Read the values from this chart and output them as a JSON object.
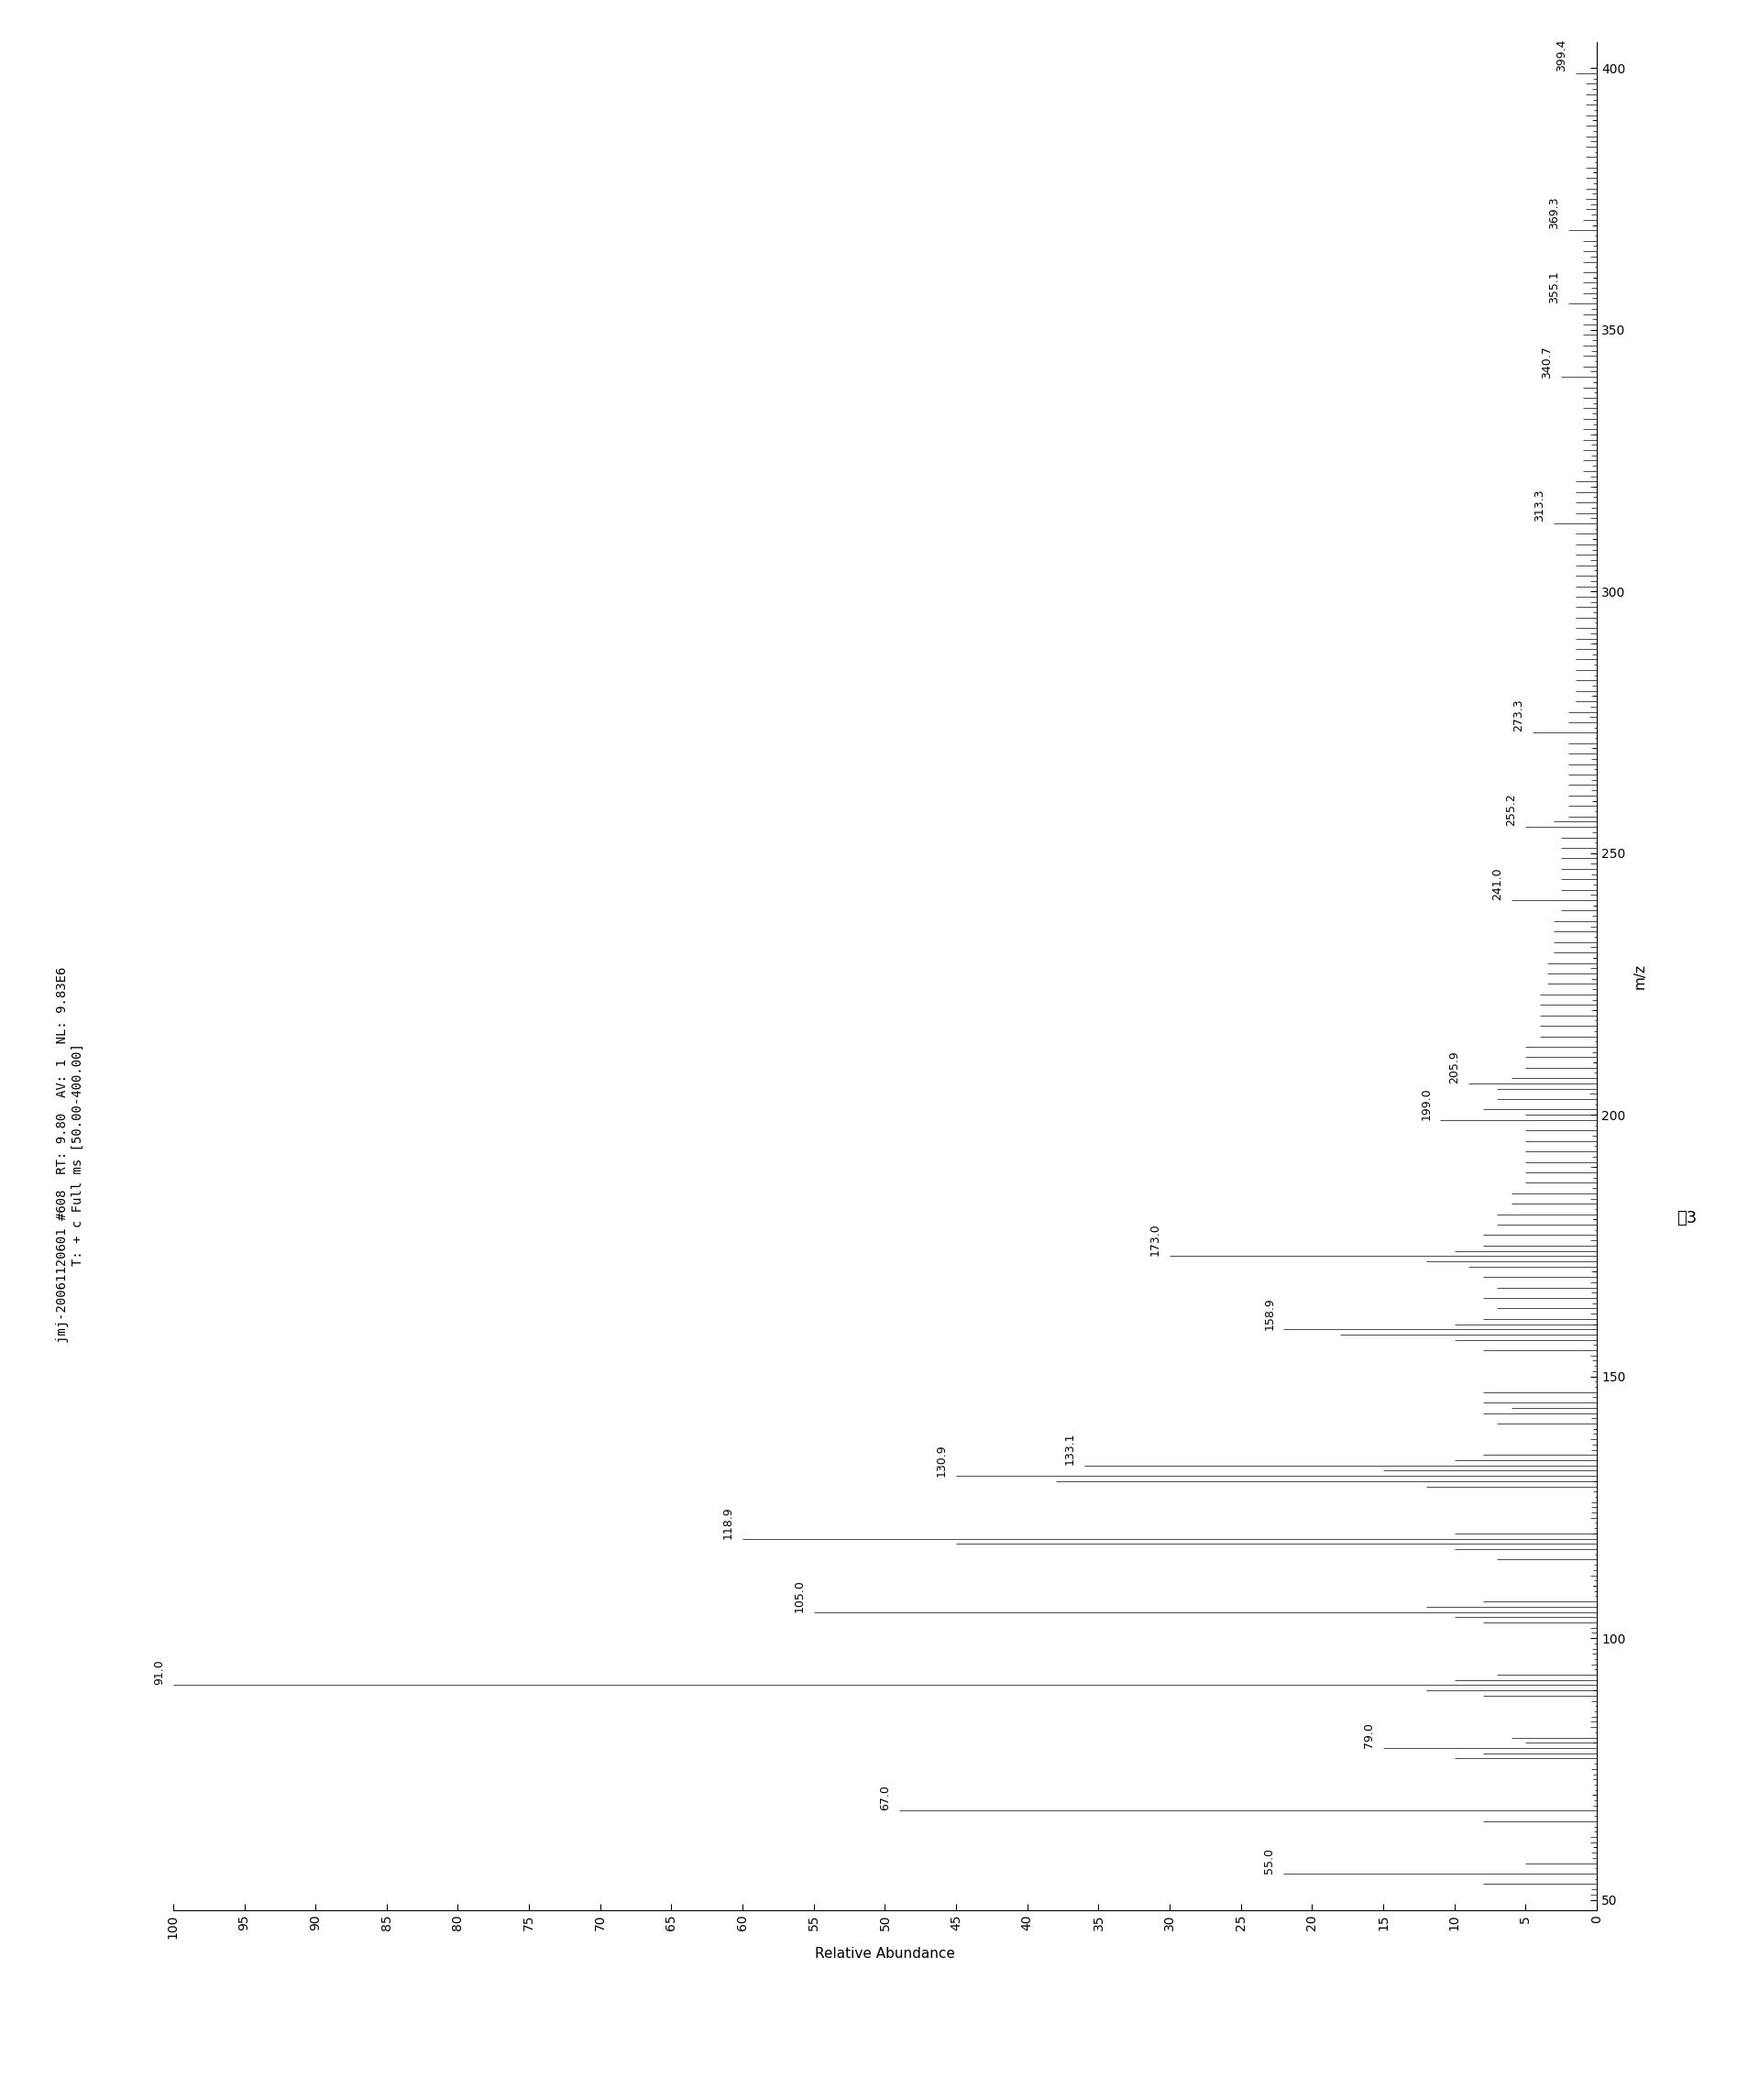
{
  "title_line1": "jmj-20061120601 #608  RT: 9.80  AV: 1  NL: 9.83E6",
  "title_line2": "T: + c Full ms [50.00-400.00]",
  "xlabel": "Relative Abundance",
  "ylabel": "m/z",
  "caption": "图3",
  "background_color": "#ffffff",
  "line_color": "#000000",
  "fontsize_title": 10,
  "fontsize_label": 11,
  "fontsize_tick": 10,
  "fontsize_peak": 9,
  "labeled_peaks": [
    {
      "mz": 67.0,
      "rel": 49.0,
      "label": "67.0"
    },
    {
      "mz": 79.0,
      "rel": 15.0,
      "label": "79.0"
    },
    {
      "mz": 91.0,
      "rel": 100.0,
      "label": "91.0"
    },
    {
      "mz": 105.0,
      "rel": 55.0,
      "label": "105.0"
    },
    {
      "mz": 118.9,
      "rel": 60.0,
      "label": "118.9"
    },
    {
      "mz": 130.9,
      "rel": 45.0,
      "label": "130.9"
    },
    {
      "mz": 133.1,
      "rel": 36.0,
      "label": "133.1"
    },
    {
      "mz": 158.9,
      "rel": 22.0,
      "label": "158.9"
    },
    {
      "mz": 173.0,
      "rel": 30.0,
      "label": "173.0"
    },
    {
      "mz": 199.0,
      "rel": 11.0,
      "label": "199.0"
    },
    {
      "mz": 205.9,
      "rel": 9.0,
      "label": "205.9"
    },
    {
      "mz": 241.0,
      "rel": 6.0,
      "label": "241.0"
    },
    {
      "mz": 255.2,
      "rel": 5.0,
      "label": "255.2"
    },
    {
      "mz": 273.3,
      "rel": 4.5,
      "label": "273.3"
    },
    {
      "mz": 313.3,
      "rel": 3.0,
      "label": "313.3"
    },
    {
      "mz": 340.7,
      "rel": 2.5,
      "label": "340.7"
    },
    {
      "mz": 355.1,
      "rel": 2.0,
      "label": "355.1"
    },
    {
      "mz": 369.3,
      "rel": 2.0,
      "label": "369.3"
    },
    {
      "mz": 399.4,
      "rel": 1.5,
      "label": "399.4"
    },
    {
      "mz": 55.0,
      "rel": 22.0,
      "label": "55.0"
    }
  ]
}
